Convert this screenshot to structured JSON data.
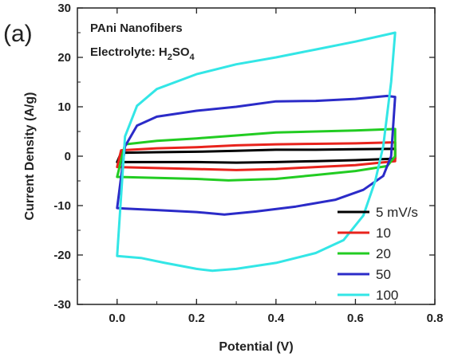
{
  "chart_data": {
    "type": "line",
    "panel_label": "(a)",
    "annotations": {
      "line1": "PAni Nanofibers",
      "line2_prefix": "Electrolyte: H",
      "line2_sub1": "2",
      "line2_mid": "SO",
      "line2_sub2": "4"
    },
    "xlabel": "Potential (V)",
    "ylabel": "Current Density (A/g)",
    "xlim": [
      -0.1,
      0.8
    ],
    "ylim": [
      -30,
      30
    ],
    "xticks": [
      0.0,
      0.2,
      0.4,
      0.6,
      0.8
    ],
    "xtick_labels": [
      "0.0",
      "0.2",
      "0.4",
      "0.6",
      "0.8"
    ],
    "yticks": [
      -30,
      -20,
      -10,
      0,
      10,
      20,
      30
    ],
    "ytick_labels": [
      "-30",
      "-20",
      "-10",
      "0",
      "10",
      "20",
      "30"
    ],
    "grid": false,
    "legend_position": "bottom-right",
    "series": [
      {
        "name": "5 mV/s",
        "color": "#000000",
        "points": [
          [
            0.0,
            -1.2
          ],
          [
            0.1,
            -1.2
          ],
          [
            0.2,
            -1.2
          ],
          [
            0.3,
            -1.3
          ],
          [
            0.4,
            -1.2
          ],
          [
            0.5,
            -1.0
          ],
          [
            0.6,
            -0.8
          ],
          [
            0.7,
            -0.5
          ],
          [
            0.7,
            1.5
          ],
          [
            0.6,
            1.4
          ],
          [
            0.5,
            1.3
          ],
          [
            0.4,
            1.3
          ],
          [
            0.3,
            1.1
          ],
          [
            0.2,
            0.9
          ],
          [
            0.1,
            0.8
          ],
          [
            0.01,
            0.7
          ],
          [
            0.0,
            -1.2
          ]
        ]
      },
      {
        "name": "10",
        "color": "#e8231c",
        "points": [
          [
            0.0,
            -2.2
          ],
          [
            0.1,
            -2.4
          ],
          [
            0.2,
            -2.6
          ],
          [
            0.3,
            -2.8
          ],
          [
            0.4,
            -2.6
          ],
          [
            0.5,
            -2.2
          ],
          [
            0.6,
            -1.8
          ],
          [
            0.7,
            -1.0
          ],
          [
            0.7,
            2.8
          ],
          [
            0.6,
            2.6
          ],
          [
            0.5,
            2.5
          ],
          [
            0.4,
            2.4
          ],
          [
            0.3,
            2.2
          ],
          [
            0.2,
            1.8
          ],
          [
            0.1,
            1.6
          ],
          [
            0.01,
            1.2
          ],
          [
            0.0,
            -2.2
          ]
        ]
      },
      {
        "name": "20",
        "color": "#22cc22",
        "points": [
          [
            0.0,
            -4.2
          ],
          [
            0.1,
            -4.4
          ],
          [
            0.2,
            -4.6
          ],
          [
            0.28,
            -4.9
          ],
          [
            0.4,
            -4.6
          ],
          [
            0.5,
            -3.8
          ],
          [
            0.6,
            -3.0
          ],
          [
            0.68,
            -2.0
          ],
          [
            0.7,
            0.0
          ],
          [
            0.7,
            5.5
          ],
          [
            0.6,
            5.2
          ],
          [
            0.5,
            5.0
          ],
          [
            0.4,
            4.8
          ],
          [
            0.3,
            4.2
          ],
          [
            0.2,
            3.6
          ],
          [
            0.1,
            3.1
          ],
          [
            0.02,
            2.4
          ],
          [
            0.0,
            -4.2
          ]
        ]
      },
      {
        "name": "50",
        "color": "#2b2bc8",
        "points": [
          [
            0.0,
            -10.5
          ],
          [
            0.02,
            -10.6
          ],
          [
            0.1,
            -10.9
          ],
          [
            0.2,
            -11.3
          ],
          [
            0.27,
            -11.8
          ],
          [
            0.35,
            -11.2
          ],
          [
            0.45,
            -10.2
          ],
          [
            0.55,
            -8.8
          ],
          [
            0.62,
            -6.8
          ],
          [
            0.67,
            -4.0
          ],
          [
            0.69,
            0.0
          ],
          [
            0.7,
            12.0
          ],
          [
            0.68,
            12.2
          ],
          [
            0.6,
            11.6
          ],
          [
            0.5,
            11.2
          ],
          [
            0.4,
            11.1
          ],
          [
            0.3,
            10.0
          ],
          [
            0.2,
            9.2
          ],
          [
            0.1,
            8.0
          ],
          [
            0.05,
            6.2
          ],
          [
            0.02,
            2.0
          ],
          [
            0.0,
            -10.5
          ]
        ]
      },
      {
        "name": "100",
        "color": "#33e6e6",
        "points": [
          [
            0.0,
            -20.2
          ],
          [
            0.06,
            -20.6
          ],
          [
            0.12,
            -21.6
          ],
          [
            0.2,
            -22.8
          ],
          [
            0.24,
            -23.2
          ],
          [
            0.3,
            -22.8
          ],
          [
            0.4,
            -21.6
          ],
          [
            0.5,
            -19.6
          ],
          [
            0.57,
            -17.0
          ],
          [
            0.62,
            -12.0
          ],
          [
            0.65,
            -5.0
          ],
          [
            0.67,
            2.0
          ],
          [
            0.69,
            15.0
          ],
          [
            0.7,
            25.0
          ],
          [
            0.6,
            23.2
          ],
          [
            0.5,
            21.6
          ],
          [
            0.4,
            20.0
          ],
          [
            0.3,
            18.6
          ],
          [
            0.2,
            16.6
          ],
          [
            0.1,
            13.6
          ],
          [
            0.05,
            10.2
          ],
          [
            0.02,
            4.0
          ],
          [
            0.0,
            -20.2
          ]
        ]
      }
    ]
  }
}
